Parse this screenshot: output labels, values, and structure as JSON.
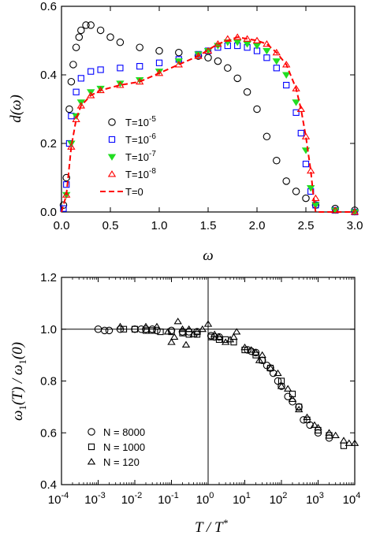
{
  "chart_data": [
    {
      "type": "scatter",
      "xlabel": "ω",
      "ylabel": "d(ω)",
      "xlim": [
        0.0,
        3.0
      ],
      "ylim": [
        0.0,
        0.6
      ],
      "xticks": [
        "0.0",
        "0.5",
        "1.0",
        "1.5",
        "2.0",
        "2.5",
        "3.0"
      ],
      "yticks": [
        "0.0",
        "0.2",
        "0.4",
        "0.6"
      ],
      "legend_position": "left-center",
      "series": [
        {
          "name": "T=10-5",
          "label_base": "T=10",
          "label_exp": "-5",
          "marker": "circle",
          "color": "#000000",
          "x": [
            0.02,
            0.05,
            0.08,
            0.1,
            0.12,
            0.15,
            0.18,
            0.2,
            0.25,
            0.3,
            0.4,
            0.5,
            0.6,
            0.8,
            1.0,
            1.2,
            1.4,
            1.5,
            1.6,
            1.7,
            1.8,
            1.9,
            2.0,
            2.1,
            2.2,
            2.3,
            2.4,
            2.5,
            2.6,
            2.8,
            3.0
          ],
          "y": [
            0.02,
            0.1,
            0.3,
            0.38,
            0.43,
            0.48,
            0.51,
            0.53,
            0.545,
            0.545,
            0.53,
            0.51,
            0.495,
            0.48,
            0.47,
            0.465,
            0.455,
            0.45,
            0.44,
            0.42,
            0.39,
            0.35,
            0.3,
            0.22,
            0.15,
            0.09,
            0.06,
            0.04,
            0.02,
            0.01,
            0.005
          ]
        },
        {
          "name": "T=10-6",
          "label_base": "T=10",
          "label_exp": "-6",
          "marker": "square",
          "color": "#0000ff",
          "x": [
            0.02,
            0.05,
            0.08,
            0.1,
            0.15,
            0.2,
            0.3,
            0.4,
            0.6,
            0.8,
            1.0,
            1.2,
            1.4,
            1.5,
            1.6,
            1.7,
            1.8,
            1.9,
            2.0,
            2.1,
            2.2,
            2.3,
            2.4,
            2.45,
            2.5,
            2.55,
            2.6,
            2.8,
            3.0
          ],
          "y": [
            0.01,
            0.08,
            0.2,
            0.28,
            0.35,
            0.39,
            0.41,
            0.415,
            0.42,
            0.425,
            0.435,
            0.445,
            0.46,
            0.47,
            0.48,
            0.485,
            0.485,
            0.48,
            0.47,
            0.45,
            0.42,
            0.37,
            0.29,
            0.23,
            0.14,
            0.06,
            0.02,
            0.005,
            0.0
          ]
        },
        {
          "name": "T=10-7",
          "label_base": "T=10",
          "label_exp": "-7",
          "marker": "triangle-down",
          "color": "#22dd22",
          "x": [
            0.05,
            0.1,
            0.15,
            0.2,
            0.3,
            0.4,
            0.6,
            0.8,
            1.0,
            1.2,
            1.4,
            1.5,
            1.6,
            1.7,
            1.8,
            1.9,
            2.0,
            2.1,
            2.2,
            2.3,
            2.4,
            2.5,
            2.55,
            2.6,
            2.8,
            3.0
          ],
          "y": [
            0.05,
            0.2,
            0.28,
            0.32,
            0.35,
            0.36,
            0.375,
            0.385,
            0.41,
            0.44,
            0.46,
            0.47,
            0.485,
            0.495,
            0.495,
            0.49,
            0.485,
            0.47,
            0.44,
            0.4,
            0.32,
            0.18,
            0.07,
            0.02,
            0.005,
            0.0
          ]
        },
        {
          "name": "T=10-8",
          "label_base": "T=10",
          "label_exp": "-8",
          "marker": "triangle-up",
          "color": "#ff0000",
          "x": [
            0.05,
            0.1,
            0.15,
            0.2,
            0.3,
            0.4,
            0.6,
            0.8,
            1.0,
            1.2,
            1.4,
            1.5,
            1.6,
            1.7,
            1.8,
            1.9,
            2.0,
            2.1,
            2.2,
            2.3,
            2.4,
            2.45,
            2.5,
            2.55,
            2.6,
            2.8,
            3.0
          ],
          "y": [
            0.05,
            0.19,
            0.27,
            0.31,
            0.34,
            0.355,
            0.37,
            0.38,
            0.405,
            0.43,
            0.455,
            0.47,
            0.49,
            0.505,
            0.51,
            0.505,
            0.5,
            0.49,
            0.465,
            0.43,
            0.36,
            0.3,
            0.22,
            0.12,
            0.04,
            0.005,
            0.0
          ]
        },
        {
          "name": "T=0",
          "label_base": "T=0",
          "label_exp": "",
          "marker": "dashed-line",
          "color": "#ff0000",
          "x": [
            0.0,
            0.05,
            0.1,
            0.15,
            0.2,
            0.3,
            0.4,
            0.6,
            0.8,
            1.0,
            1.2,
            1.4,
            1.6,
            1.8,
            2.0,
            2.1,
            2.2,
            2.3,
            2.4,
            2.45,
            2.5,
            2.55,
            2.58,
            2.6,
            3.0
          ],
          "y": [
            0.0,
            0.05,
            0.19,
            0.27,
            0.31,
            0.34,
            0.355,
            0.37,
            0.38,
            0.405,
            0.43,
            0.455,
            0.49,
            0.51,
            0.5,
            0.49,
            0.465,
            0.43,
            0.36,
            0.3,
            0.22,
            0.12,
            0.04,
            0.0,
            0.0
          ]
        }
      ]
    },
    {
      "type": "scatter",
      "xlabel_base": "T / T",
      "xlabel_sup": "*",
      "ylabel": "ω1(T) / ω1(0)",
      "ylabel_omega": "ω",
      "ylabel_sub": "1",
      "ylabel_part1": "(T) / ",
      "ylabel_part2": "(0)",
      "xscale": "log",
      "xlim": [
        0.0001,
        10000
      ],
      "ylim": [
        0.4,
        1.2
      ],
      "xtick_exps": [
        "-4",
        "-3",
        "-2",
        "-1",
        "0",
        "1",
        "2",
        "3",
        "4"
      ],
      "xtick_base": "10",
      "yticks": [
        "0.4",
        "0.6",
        "0.8",
        "1.0",
        "1.2"
      ],
      "reference_lines": {
        "x": 1,
        "y": 1.0
      },
      "legend_position": "bottom-left",
      "series": [
        {
          "name": "N = 8000",
          "marker": "circle",
          "x": [
            0.001,
            0.0015,
            0.002,
            0.004,
            0.01,
            0.015,
            0.02,
            0.03,
            0.04,
            0.1,
            0.2,
            0.3,
            0.5,
            1.2,
            1.5,
            2,
            12,
            15,
            20,
            30,
            40,
            50,
            60,
            80,
            100,
            150,
            200,
            300,
            400,
            600,
            1000,
            2000
          ],
          "y": [
            1.0,
            0.995,
            0.995,
            1.0,
            1.0,
            1.0,
            1.0,
            1.0,
            0.995,
            0.995,
            0.99,
            0.99,
            0.99,
            0.975,
            0.97,
            0.97,
            0.92,
            0.915,
            0.91,
            0.88,
            0.86,
            0.85,
            0.83,
            0.8,
            0.78,
            0.74,
            0.72,
            0.7,
            0.65,
            0.63,
            0.6,
            0.58
          ]
        },
        {
          "name": "N = 1000",
          "marker": "square",
          "x": [
            0.005,
            0.01,
            0.02,
            0.03,
            0.05,
            0.1,
            0.2,
            0.3,
            0.5,
            1.2,
            2,
            3,
            5,
            10,
            20,
            30,
            50,
            100,
            200,
            300,
            500,
            1000,
            2000,
            5000
          ],
          "y": [
            1.0,
            1.0,
            0.995,
            0.995,
            0.99,
            0.99,
            0.985,
            0.98,
            0.98,
            0.97,
            0.96,
            0.96,
            0.95,
            0.92,
            0.9,
            0.88,
            0.85,
            0.8,
            0.75,
            0.7,
            0.65,
            0.61,
            0.59,
            0.55
          ]
        },
        {
          "name": "N = 120",
          "marker": "triangle-up",
          "x": [
            0.004,
            0.02,
            0.04,
            0.08,
            0.1,
            0.12,
            0.15,
            0.2,
            0.25,
            0.3,
            0.4,
            0.5,
            0.7,
            1,
            1.5,
            2,
            3,
            4,
            5,
            6,
            10,
            15,
            20,
            25,
            30,
            50,
            80,
            100,
            150,
            200,
            300,
            500,
            800,
            1000,
            2000,
            3000,
            5000,
            7000,
            10000
          ],
          "y": [
            1.01,
            1.01,
            1.01,
            0.99,
            0.95,
            0.97,
            1.03,
            1.0,
            0.94,
            1.0,
            0.98,
            0.99,
            1.0,
            1.02,
            0.98,
            0.97,
            0.95,
            0.96,
            0.97,
            0.99,
            0.93,
            0.92,
            0.91,
            0.88,
            0.9,
            0.85,
            0.83,
            0.78,
            0.77,
            0.73,
            0.69,
            0.66,
            0.63,
            0.62,
            0.6,
            0.59,
            0.57,
            0.56,
            0.56
          ]
        }
      ]
    }
  ]
}
